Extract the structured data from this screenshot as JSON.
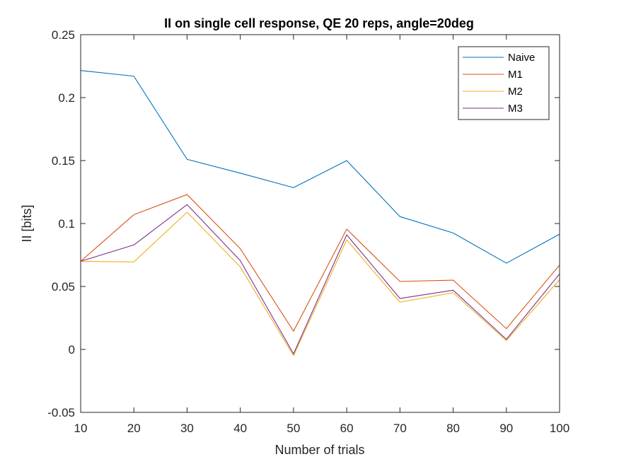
{
  "chart_data": {
    "type": "line",
    "title": "II on single cell response, QE 20 reps, angle=20deg",
    "xlabel": "Number of trials",
    "ylabel": "II [bits]",
    "x": [
      10,
      20,
      30,
      40,
      50,
      60,
      70,
      80,
      90,
      100
    ],
    "xlim": [
      10,
      100
    ],
    "ylim": [
      -0.05,
      0.25
    ],
    "xticks": [
      10,
      20,
      30,
      40,
      50,
      60,
      70,
      80,
      90,
      100
    ],
    "xtick_labels": [
      "10",
      "20",
      "30",
      "40",
      "50",
      "60",
      "70",
      "80",
      "90",
      "100"
    ],
    "yticks": [
      -0.05,
      0,
      0.05,
      0.1,
      0.15,
      0.2,
      0.25
    ],
    "ytick_labels": [
      "-0.05",
      "0",
      "0.05",
      "0.1",
      "0.15",
      "0.2",
      "0.25"
    ],
    "grid": false,
    "legend_position": "top-right",
    "series": [
      {
        "name": "Naive",
        "color": "#0072BD",
        "values": [
          0.2215,
          0.217,
          0.151,
          0.14,
          0.1285,
          0.15,
          0.1055,
          0.0925,
          0.0685,
          0.0915
        ]
      },
      {
        "name": "M1",
        "color": "#D95319",
        "values": [
          0.07,
          0.107,
          0.123,
          0.08,
          0.0145,
          0.0955,
          0.054,
          0.055,
          0.0165,
          0.067
        ]
      },
      {
        "name": "M2",
        "color": "#EDB120",
        "values": [
          0.07,
          0.0695,
          0.109,
          0.0655,
          -0.005,
          0.087,
          0.0375,
          0.045,
          0.007,
          0.0555
        ]
      },
      {
        "name": "M3",
        "color": "#7E2F8E",
        "values": [
          0.07,
          0.083,
          0.115,
          0.0705,
          -0.0035,
          0.091,
          0.0405,
          0.047,
          0.008,
          0.06
        ]
      }
    ]
  }
}
